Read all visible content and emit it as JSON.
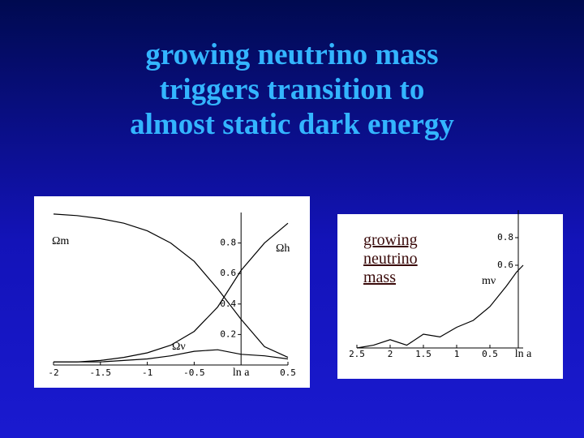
{
  "slide": {
    "title": [
      "growing neutrino mass",
      "triggers transition to",
      "almost static dark energy"
    ]
  },
  "chart_data": [
    {
      "type": "line",
      "xlabel": "ln a",
      "x": [
        -2,
        -1.75,
        -1.5,
        -1.25,
        -1,
        -0.75,
        -0.5,
        -0.25,
        0,
        0.25,
        0.5
      ],
      "xlim": [
        -2,
        0.5
      ],
      "xticks": [
        -2,
        -1.5,
        -1,
        -0.5,
        0.5
      ],
      "ylim": [
        0,
        1
      ],
      "yticks": [
        0.2,
        0.4,
        0.6,
        0.8
      ],
      "series": [
        {
          "name": "Ωm",
          "color": "#000000",
          "values": [
            0.99,
            0.98,
            0.96,
            0.93,
            0.88,
            0.8,
            0.68,
            0.5,
            0.3,
            0.12,
            0.05
          ]
        },
        {
          "name": "Ωh",
          "color": "#000000",
          "values": [
            0.02,
            0.02,
            0.03,
            0.05,
            0.08,
            0.13,
            0.22,
            0.38,
            0.62,
            0.8,
            0.93
          ]
        },
        {
          "name": "Ων",
          "color": "#000000",
          "values": [
            0.02,
            0.02,
            0.02,
            0.03,
            0.04,
            0.06,
            0.09,
            0.1,
            0.07,
            0.06,
            0.04
          ]
        }
      ]
    },
    {
      "type": "line",
      "xlabel": "ln a",
      "annotation": "growing neutrino mass",
      "x": [
        2.5,
        2.25,
        2,
        1.75,
        1.5,
        1.25,
        1,
        0.75,
        0.5,
        0.25,
        0.1,
        0
      ],
      "xlim": [
        2.5,
        0
      ],
      "xticks": [
        2.5,
        2,
        1.5,
        1,
        0.5
      ],
      "ylim": [
        0,
        1
      ],
      "yticks": [
        0.6,
        0.8
      ],
      "series": [
        {
          "name": "mν",
          "color": "#000000",
          "values": [
            0.0,
            0.02,
            0.06,
            0.02,
            0.1,
            0.08,
            0.15,
            0.2,
            0.3,
            0.45,
            0.55,
            0.6
          ]
        }
      ]
    }
  ]
}
